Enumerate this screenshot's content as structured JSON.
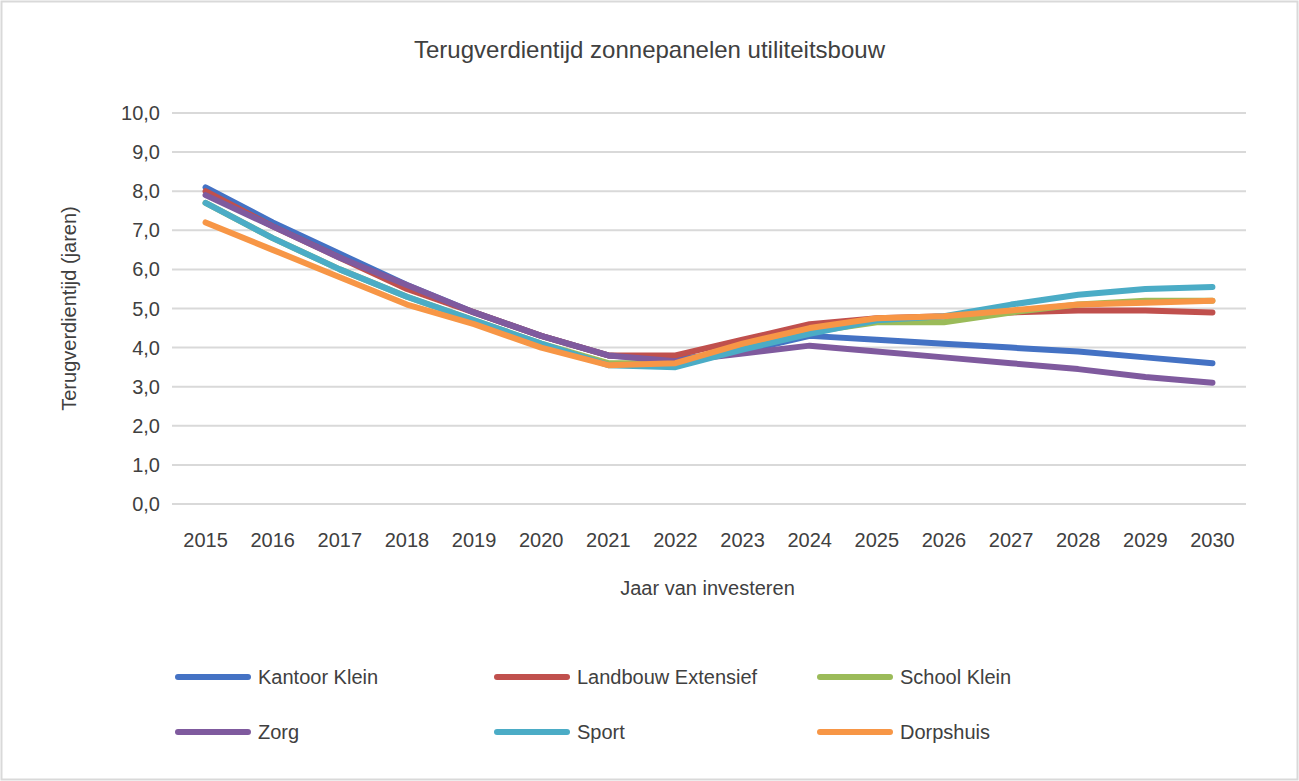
{
  "chart_data": {
    "type": "line",
    "title": "Terugverdientijd zonnepanelen utiliteitsbouw",
    "x_label": "Jaar van investeren",
    "y_label": "Terugverdientijd (jaren)",
    "categories": [
      "2015",
      "2016",
      "2017",
      "2018",
      "2019",
      "2020",
      "2021",
      "2022",
      "2023",
      "2024",
      "2025",
      "2026",
      "2027",
      "2028",
      "2029",
      "2030"
    ],
    "series": [
      {
        "name": "Kantoor Klein",
        "color": "#4472c4",
        "values": [
          8.1,
          7.2,
          6.4,
          5.6,
          4.9,
          4.3,
          3.8,
          3.7,
          3.9,
          4.3,
          4.2,
          4.1,
          4.0,
          3.9,
          3.75,
          3.6
        ]
      },
      {
        "name": "Landbouw Extensief",
        "color": "#c0504d",
        "values": [
          8.0,
          7.1,
          6.3,
          5.5,
          4.9,
          4.3,
          3.8,
          3.8,
          4.2,
          4.6,
          4.75,
          4.8,
          4.9,
          4.95,
          4.95,
          4.9
        ]
      },
      {
        "name": "School Klein",
        "color": "#9bbb59",
        "values": [
          7.7,
          6.8,
          6.0,
          5.3,
          4.7,
          4.1,
          3.6,
          3.6,
          4.0,
          4.4,
          4.65,
          4.65,
          4.9,
          5.1,
          5.2,
          5.2
        ]
      },
      {
        "name": "Zorg",
        "color": "#7f5a9e",
        "values": [
          7.9,
          7.1,
          6.3,
          5.6,
          4.9,
          4.3,
          3.8,
          3.65,
          3.85,
          4.05,
          3.9,
          3.75,
          3.6,
          3.45,
          3.25,
          3.1
        ]
      },
      {
        "name": "Sport",
        "color": "#4bacc6",
        "values": [
          7.7,
          6.8,
          6.0,
          5.3,
          4.7,
          4.1,
          3.55,
          3.5,
          3.95,
          4.35,
          4.7,
          4.8,
          5.1,
          5.35,
          5.5,
          5.55
        ]
      },
      {
        "name": "Dorpshuis",
        "color": "#f79646",
        "values": [
          7.2,
          6.5,
          5.8,
          5.1,
          4.6,
          4.0,
          3.55,
          3.6,
          4.1,
          4.5,
          4.75,
          4.8,
          4.95,
          5.1,
          5.15,
          5.2
        ]
      }
    ],
    "ylim": [
      0,
      10
    ],
    "yticks": [
      {
        "value": 0,
        "label": "0,0"
      },
      {
        "value": 1,
        "label": "1,0"
      },
      {
        "value": 2,
        "label": "2,0"
      },
      {
        "value": 3,
        "label": "3,0"
      },
      {
        "value": 4,
        "label": "4,0"
      },
      {
        "value": 5,
        "label": "5,0"
      },
      {
        "value": 6,
        "label": "6,0"
      },
      {
        "value": 7,
        "label": "7,0"
      },
      {
        "value": 8,
        "label": "8,0"
      },
      {
        "value": 9,
        "label": "9,0"
      },
      {
        "value": 10,
        "label": "10,0"
      }
    ],
    "grid": true,
    "legend": "bottom"
  }
}
